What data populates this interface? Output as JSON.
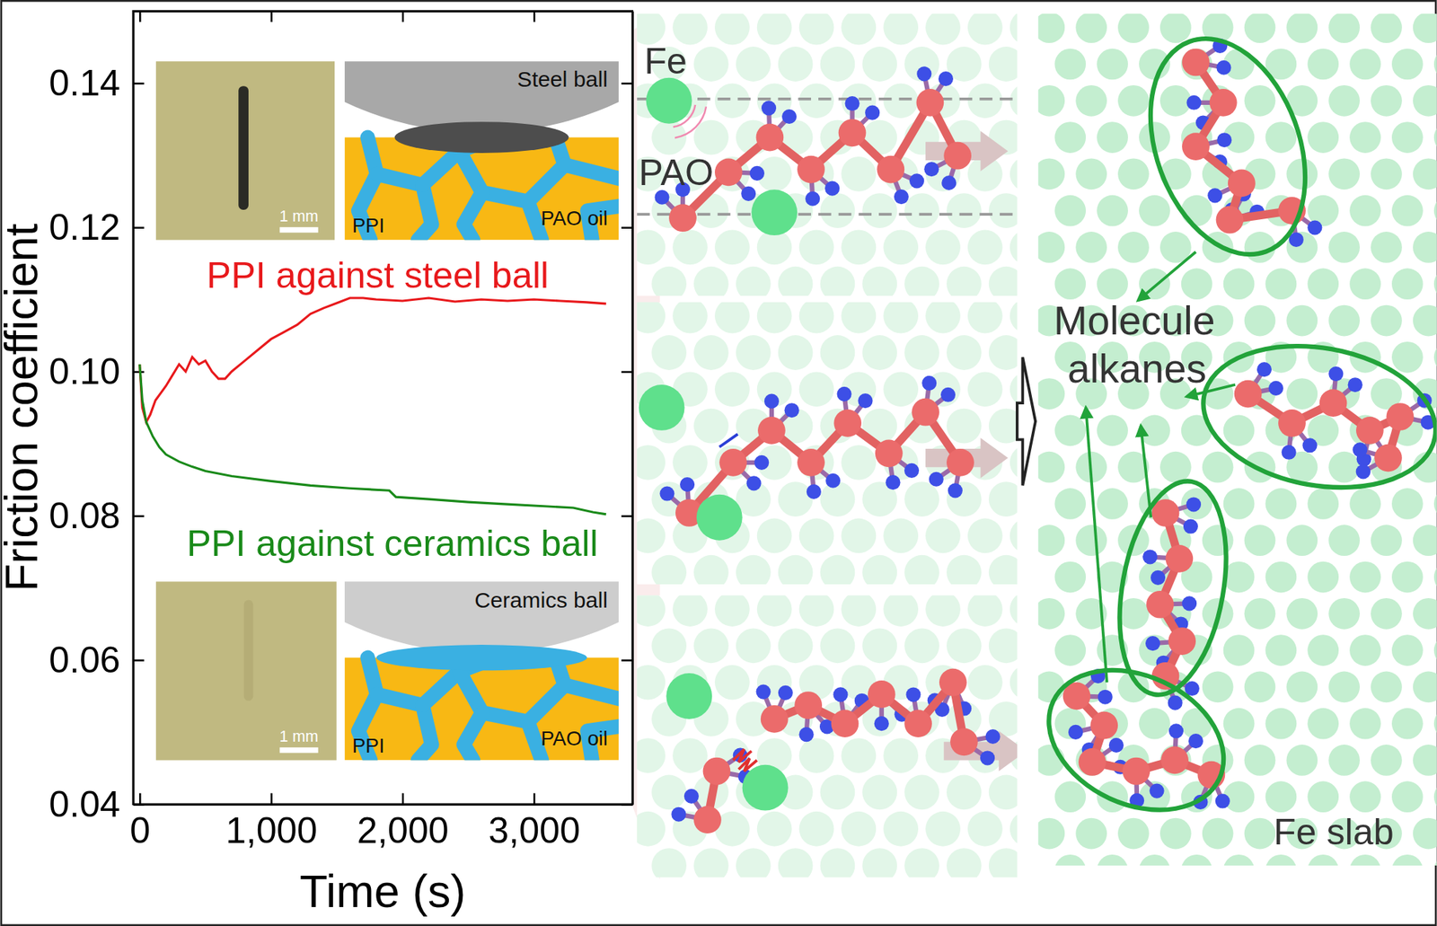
{
  "chart_data": {
    "type": "line",
    "xlabel": "Time (s)",
    "ylabel": "Friction coefficient",
    "xlim": [
      -50,
      3750
    ],
    "ylim": [
      0.04,
      0.15
    ],
    "xticks": [
      0,
      {
        "value": 1000,
        "label": "1,000"
      },
      {
        "value": 2000,
        "label": "2,000"
      },
      {
        "value": 3000,
        "label": "3,000"
      }
    ],
    "yticks": [
      0.04,
      0.06,
      0.08,
      {
        "value": 0.1,
        "label": "0.10"
      },
      0.12,
      0.14
    ],
    "series": [
      {
        "name": "PPI against steel ball",
        "color": "#e8191c",
        "x": [
          0,
          20,
          50,
          80,
          120,
          160,
          200,
          250,
          300,
          350,
          400,
          450,
          500,
          550,
          600,
          650,
          700,
          800,
          900,
          1000,
          1100,
          1200,
          1300,
          1400,
          1500,
          1600,
          1700,
          1800,
          2000,
          2200,
          2400,
          2600,
          2800,
          3000,
          3200,
          3400,
          3550
        ],
        "values": [
          0.101,
          0.095,
          0.093,
          0.094,
          0.096,
          0.097,
          0.098,
          0.0995,
          0.101,
          0.1,
          0.102,
          0.101,
          0.1015,
          0.1,
          0.099,
          0.099,
          0.1,
          0.1015,
          0.103,
          0.1045,
          0.1055,
          0.1065,
          0.108,
          0.1088,
          0.1095,
          0.1102,
          0.1102,
          0.11,
          0.1098,
          0.1102,
          0.1097,
          0.11,
          0.1098,
          0.11,
          0.1098,
          0.1096,
          0.1094
        ]
      },
      {
        "name": "PPI against ceramics ball",
        "color": "#1a8a1a",
        "x": [
          0,
          20,
          50,
          100,
          150,
          200,
          300,
          400,
          500,
          700,
          1000,
          1300,
          1600,
          1900,
          1950,
          2200,
          2500,
          2800,
          3100,
          3300,
          3450,
          3550
        ],
        "values": [
          0.101,
          0.096,
          0.093,
          0.091,
          0.0895,
          0.0885,
          0.0875,
          0.0868,
          0.0862,
          0.0855,
          0.0848,
          0.0842,
          0.0838,
          0.0835,
          0.0826,
          0.0823,
          0.0819,
          0.0816,
          0.0813,
          0.0811,
          0.0805,
          0.0802
        ]
      }
    ],
    "insets": [
      {
        "ball": "Steel ball",
        "matrix": "PPI",
        "oil": "PAO oil",
        "scale_bar": "1 mm"
      },
      {
        "ball": "Ceramics ball",
        "matrix": "PPI",
        "oil": "PAO oil",
        "scale_bar": "1 mm"
      }
    ],
    "simulation": {
      "atom": "Fe",
      "molecule": "PAO",
      "product": "Molecule alkanes",
      "slab": "Fe slab"
    }
  }
}
